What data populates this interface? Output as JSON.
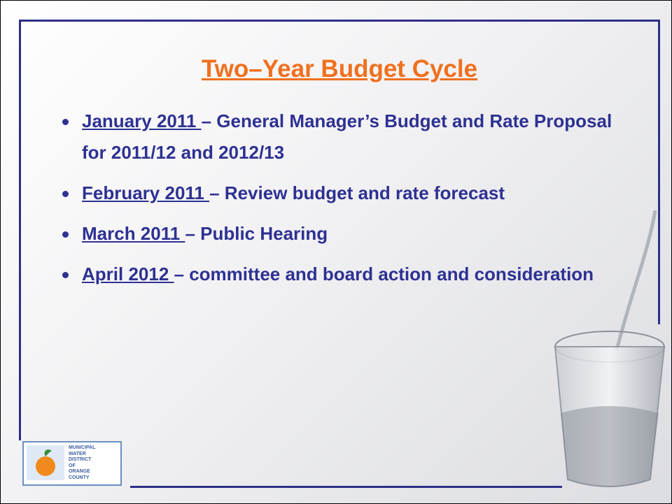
{
  "slide": {
    "title": "Two–Year Budget Cycle",
    "bullets": [
      {
        "date": "January 2011 ",
        "text": "– General Manager’s Budget and Rate Proposal for 2011/12 and 2012/13"
      },
      {
        "date": "February 2011 ",
        "text": "– Review budget and rate forecast"
      },
      {
        "date": "March 2011 ",
        "text": "– Public Hearing"
      },
      {
        "date": "April 2012 ",
        "text": "– committee and board action and consideration"
      }
    ],
    "logo": {
      "lines": [
        "MUNICIPAL",
        "WATER",
        "DISTRICT",
        "OF",
        "ORANGE",
        "COUNTY"
      ]
    }
  }
}
